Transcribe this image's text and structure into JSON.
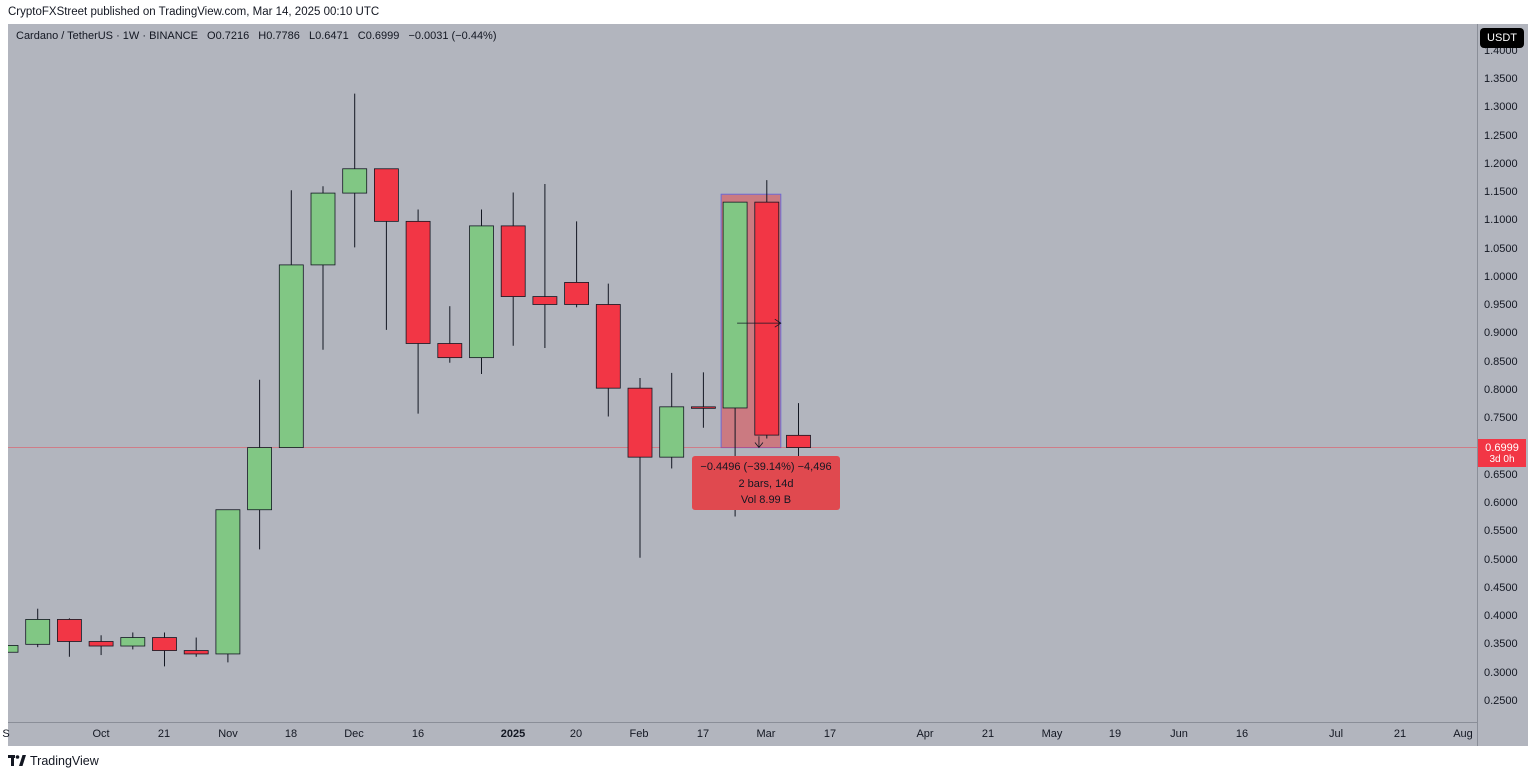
{
  "publisher": "CryptoFXStreet published on TradingView.com, Mar 14, 2025 00:10 UTC",
  "legend": {
    "symbol": "Cardano / TetherUS · 1W · BINANCE",
    "open": "O0.7216",
    "high": "H0.7786",
    "low": "L0.6471",
    "close": "C0.6999",
    "change": "−0.0031 (−0.44%)"
  },
  "currency_button": "USDT",
  "last_price": {
    "value": "0.6999",
    "countdown": "3d 0h",
    "color": "#f23645"
  },
  "measure": {
    "line1": "−0.4496 (−39.14%) −4,496",
    "line2": "2 bars, 14d",
    "line3": "Vol 8.99 B"
  },
  "brand": {
    "name": "TradingView",
    "icon": "tradingview-logo-icon"
  },
  "colors": {
    "up": "#81c784",
    "down": "#f23645",
    "background": "#b2b5be"
  },
  "chart_data": {
    "type": "candlestick",
    "price_axis_labels": [
      "1.4000",
      "1.3500",
      "1.3000",
      "1.2500",
      "1.2000",
      "1.1500",
      "1.1000",
      "1.0500",
      "1.0000",
      "0.9500",
      "0.9000",
      "0.8500",
      "0.8000",
      "0.7500",
      "0.7000",
      "0.6500",
      "0.6000",
      "0.5500",
      "0.5000",
      "0.4500",
      "0.4000",
      "0.3500",
      "0.3000",
      "0.2500"
    ],
    "ylim": [
      0.22,
      1.42
    ],
    "time_axis_labels": [
      {
        "label": "S",
        "bold": false
      },
      {
        "label": "Oct",
        "bold": false
      },
      {
        "label": "21",
        "bold": false
      },
      {
        "label": "Nov",
        "bold": false
      },
      {
        "label": "18",
        "bold": false
      },
      {
        "label": "Dec",
        "bold": false
      },
      {
        "label": "16",
        "bold": false
      },
      {
        "label": "2025",
        "bold": true
      },
      {
        "label": "20",
        "bold": false
      },
      {
        "label": "Feb",
        "bold": false
      },
      {
        "label": "17",
        "bold": false
      },
      {
        "label": "Mar",
        "bold": false
      },
      {
        "label": "17",
        "bold": false
      },
      {
        "label": "Apr",
        "bold": false
      },
      {
        "label": "21",
        "bold": false
      },
      {
        "label": "May",
        "bold": false
      },
      {
        "label": "19",
        "bold": false
      },
      {
        "label": "Jun",
        "bold": false
      },
      {
        "label": "16",
        "bold": false
      },
      {
        "label": "Jul",
        "bold": false
      },
      {
        "label": "21",
        "bold": false
      },
      {
        "label": "Aug",
        "bold": false
      }
    ],
    "candles": [
      {
        "o": 0.338,
        "h": 0.35,
        "l": 0.335,
        "c": 0.35
      },
      {
        "o": 0.352,
        "h": 0.415,
        "l": 0.347,
        "c": 0.396
      },
      {
        "o": 0.396,
        "h": 0.398,
        "l": 0.33,
        "c": 0.357
      },
      {
        "o": 0.357,
        "h": 0.368,
        "l": 0.333,
        "c": 0.349
      },
      {
        "o": 0.349,
        "h": 0.373,
        "l": 0.343,
        "c": 0.364
      },
      {
        "o": 0.364,
        "h": 0.373,
        "l": 0.313,
        "c": 0.341
      },
      {
        "o": 0.341,
        "h": 0.364,
        "l": 0.33,
        "c": 0.335
      },
      {
        "o": 0.335,
        "h": 0.59,
        "l": 0.32,
        "c": 0.59
      },
      {
        "o": 0.59,
        "h": 0.82,
        "l": 0.52,
        "c": 0.7
      },
      {
        "o": 0.7,
        "h": 1.155,
        "l": 0.7,
        "c": 1.023
      },
      {
        "o": 1.023,
        "h": 1.162,
        "l": 0.873,
        "c": 1.15
      },
      {
        "o": 1.15,
        "h": 1.326,
        "l": 1.054,
        "c": 1.193
      },
      {
        "o": 1.193,
        "h": 1.193,
        "l": 0.908,
        "c": 1.1
      },
      {
        "o": 1.1,
        "h": 1.121,
        "l": 0.76,
        "c": 0.884
      },
      {
        "o": 0.884,
        "h": 0.95,
        "l": 0.85,
        "c": 0.859
      },
      {
        "o": 0.859,
        "h": 1.121,
        "l": 0.83,
        "c": 1.092
      },
      {
        "o": 1.092,
        "h": 1.151,
        "l": 0.88,
        "c": 0.967
      },
      {
        "o": 0.967,
        "h": 1.166,
        "l": 0.876,
        "c": 0.953
      },
      {
        "o": 0.992,
        "h": 1.1,
        "l": 0.948,
        "c": 0.953
      },
      {
        "o": 0.953,
        "h": 0.99,
        "l": 0.755,
        "c": 0.805
      },
      {
        "o": 0.805,
        "h": 0.823,
        "l": 0.505,
        "c": 0.683
      },
      {
        "o": 0.683,
        "h": 0.832,
        "l": 0.663,
        "c": 0.772
      },
      {
        "o": 0.772,
        "h": 0.833,
        "l": 0.735,
        "c": 0.77
      },
      {
        "o": 0.77,
        "h": 1.134,
        "l": 0.578,
        "c": 1.134
      },
      {
        "o": 1.134,
        "h": 1.173,
        "l": 0.716,
        "c": 0.722
      },
      {
        "o": 0.7216,
        "h": 0.7786,
        "l": 0.6471,
        "c": 0.6999
      }
    ]
  }
}
